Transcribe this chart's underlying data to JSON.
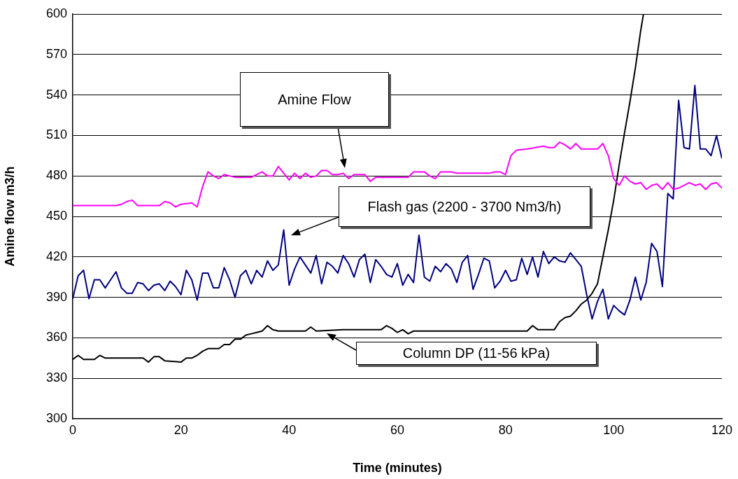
{
  "chart_data": {
    "type": "line",
    "xlabel": "Time (minutes)",
    "ylabel": "Amine flow m3/h",
    "xlim": [
      0,
      120
    ],
    "xticks": [
      0,
      20,
      40,
      60,
      80,
      100,
      120
    ],
    "ylim": [
      300,
      600
    ],
    "yticks": [
      300,
      330,
      360,
      390,
      420,
      450,
      480,
      510,
      540,
      570,
      600
    ],
    "grid": "y",
    "legend": false,
    "marker": "none",
    "line_style": "solid",
    "series": [
      {
        "color": "#ff00ff",
        "x": [
          0,
          8,
          9,
          10,
          11,
          12,
          16,
          17,
          18,
          19,
          20,
          22,
          23,
          24,
          25,
          26,
          27,
          28,
          30,
          33,
          35,
          36,
          37,
          38,
          40,
          41,
          42,
          43,
          44,
          45,
          46,
          47,
          48,
          49,
          50,
          51,
          52,
          54,
          55,
          56,
          60,
          62,
          63,
          65,
          66,
          67,
          68,
          70,
          71,
          77,
          78,
          79,
          80,
          81,
          82,
          84,
          87,
          88,
          89,
          90,
          91,
          92,
          93,
          94,
          97,
          98,
          99,
          100,
          101,
          102,
          103,
          104,
          105,
          106,
          107,
          108,
          109,
          110,
          111,
          112,
          113,
          114,
          115,
          116,
          117,
          118,
          119,
          120
        ],
        "values": [
          458,
          458,
          459,
          461,
          462,
          458,
          458,
          461,
          460,
          457,
          459,
          460,
          457,
          472,
          483,
          480,
          478,
          481,
          479,
          479,
          483,
          480,
          480,
          487,
          477,
          482,
          478,
          482,
          479,
          480,
          484,
          484,
          481,
          481,
          482,
          478,
          481,
          481,
          476,
          479,
          479,
          479,
          483,
          483,
          480,
          478,
          483,
          483,
          482,
          482,
          483,
          483,
          481,
          495,
          499,
          500,
          502,
          501,
          501,
          505,
          503,
          500,
          504,
          500,
          500,
          504,
          495,
          478,
          473,
          480,
          476,
          474,
          475,
          470,
          473,
          474,
          470,
          475,
          470,
          471,
          473,
          475,
          473,
          474,
          470,
          474,
          475,
          471
        ]
      },
      {
        "color": "#000080",
        "x": [
          0,
          1,
          2,
          3,
          4,
          5,
          6,
          7,
          8,
          9,
          10,
          11,
          12,
          13,
          14,
          15,
          16,
          17,
          18,
          19,
          20,
          21,
          22,
          23,
          24,
          25,
          26,
          27,
          28,
          29,
          30,
          31,
          32,
          33,
          34,
          35,
          36,
          37,
          38,
          39,
          40,
          41,
          42,
          43,
          44,
          45,
          46,
          47,
          48,
          49,
          50,
          51,
          52,
          53,
          54,
          55,
          56,
          57,
          58,
          59,
          60,
          61,
          62,
          63,
          64,
          65,
          66,
          67,
          68,
          69,
          70,
          71,
          72,
          73,
          74,
          75,
          76,
          77,
          78,
          79,
          80,
          81,
          82,
          83,
          84,
          85,
          86,
          87,
          88,
          89,
          90,
          91,
          92,
          93,
          94,
          95,
          96,
          97,
          98,
          99,
          100,
          101,
          102,
          103,
          104,
          105,
          106,
          107,
          108,
          109,
          110,
          111,
          112,
          113,
          114,
          115,
          116,
          117,
          118,
          119,
          120
        ],
        "values": [
          389,
          406,
          410,
          389,
          403,
          403,
          397,
          403,
          409,
          397,
          393,
          393,
          401,
          400,
          395,
          399,
          400,
          395,
          402,
          398,
          392,
          410,
          403,
          388,
          408,
          408,
          397,
          397,
          412,
          403,
          390,
          406,
          410,
          400,
          410,
          405,
          417,
          410,
          414,
          440,
          399,
          411,
          420,
          414,
          408,
          421,
          400,
          416,
          413,
          408,
          421,
          415,
          405,
          418,
          422,
          401,
          418,
          413,
          407,
          405,
          415,
          399,
          407,
          401,
          436,
          405,
          402,
          413,
          409,
          415,
          411,
          401,
          416,
          421,
          396,
          407,
          419,
          417,
          397,
          402,
          410,
          402,
          403,
          419,
          407,
          420,
          405,
          424,
          415,
          420,
          417,
          416,
          423,
          418,
          413,
          392,
          374,
          387,
          396,
          374,
          384,
          380,
          377,
          388,
          405,
          388,
          401,
          430,
          424,
          398,
          467,
          463,
          536,
          501,
          500,
          547,
          500,
          500,
          495,
          510,
          493
        ]
      },
      {
        "color": "#000000",
        "x": [
          0,
          1,
          2,
          3,
          4,
          5,
          6,
          13,
          14,
          15,
          16,
          17,
          20,
          21,
          22,
          23,
          24,
          25,
          27,
          28,
          29,
          30,
          31,
          32,
          33,
          34,
          35,
          36,
          37,
          38,
          43,
          44,
          45,
          50,
          57,
          58,
          59,
          60,
          61,
          62,
          63,
          84,
          85,
          86,
          89,
          90,
          91,
          92,
          93,
          94,
          95,
          96,
          97,
          98,
          99,
          100,
          101,
          102,
          103,
          104,
          105,
          105.5
        ],
        "values": [
          344,
          347,
          344,
          344,
          344,
          347,
          345,
          345,
          342,
          346,
          346,
          343,
          342,
          345,
          345,
          347,
          350,
          352,
          352,
          355,
          355,
          359,
          359,
          362,
          363,
          364,
          365,
          369,
          366,
          365,
          365,
          368,
          365,
          366,
          366,
          369,
          367,
          364,
          366,
          363,
          365,
          365,
          369,
          366,
          366,
          372,
          375,
          376,
          380,
          385,
          388,
          393,
          400,
          420,
          440,
          462,
          488,
          512,
          535,
          560,
          588,
          600
        ]
      }
    ],
    "annotations": [
      "Amine Flow",
      "Flash gas (2200 - 3700 Nm3/h)",
      "Column DP (11-56 kPa)"
    ]
  }
}
